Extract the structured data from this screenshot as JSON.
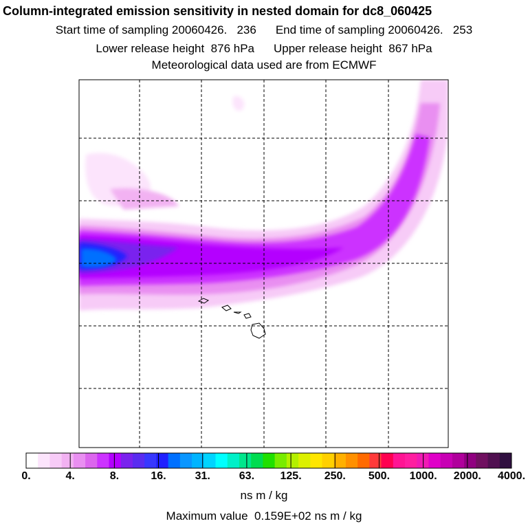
{
  "header": {
    "title": "Column-integrated emission sensitivity in nested domain for dc8_060425",
    "start_label": "Start time of sampling 20060426.   236",
    "end_label": "End time of sampling 20060426.   253",
    "lower_label": "Lower release height  876 hPa",
    "upper_label": "Upper release height  867 hPa",
    "met_label": "Meteorological data used are from ECMWF"
  },
  "colorbar": {
    "colors": [
      "#ffffff",
      "#fce4fc",
      "#f7cbf7",
      "#f2b2f2",
      "#e98ff1",
      "#dc66ee",
      "#cc33ff",
      "#b400ff",
      "#7a22ee",
      "#5a2cf0",
      "#3838ff",
      "#2020ff",
      "#0070ff",
      "#0a96ff",
      "#00b4ff",
      "#00d4ff",
      "#00ffff",
      "#00f0c8",
      "#00e68c",
      "#00dc50",
      "#20e000",
      "#78ec00",
      "#b4f000",
      "#dcf000",
      "#ffe600",
      "#ffd000",
      "#ffb000",
      "#ff9000",
      "#ff6a00",
      "#ff3a3a",
      "#ff0050",
      "#ff1493",
      "#ff1ea0",
      "#f01ab4",
      "#e000c8",
      "#c800b4",
      "#b0009c",
      "#900080",
      "#701060",
      "#501050",
      "#301040"
    ],
    "labels": [
      "0.",
      "4.",
      "8.",
      "16.",
      "31.",
      "63.",
      "125.",
      "250.",
      "500.",
      "1000.",
      "2000.",
      "4000."
    ],
    "units": "ns m / kg"
  },
  "footer": {
    "max_value": "Maximum value  0.159E+02 ns m / kg"
  }
}
